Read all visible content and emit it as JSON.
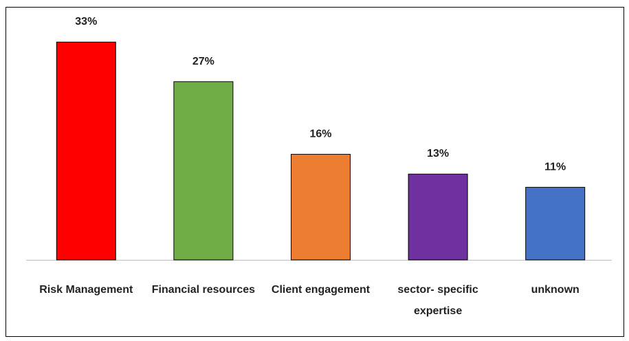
{
  "chart_data": {
    "type": "bar",
    "categories": [
      "Risk Management",
      "Financial resources",
      "Client engagement",
      "sector- specific expertise",
      "unknown"
    ],
    "values": [
      33,
      27,
      16,
      13,
      11
    ],
    "value_labels": [
      "33%",
      "27%",
      "16%",
      "13%",
      "11%"
    ],
    "colors": [
      "#ff0000",
      "#70ad47",
      "#ed7d31",
      "#7030a0",
      "#4472c4"
    ]
  }
}
